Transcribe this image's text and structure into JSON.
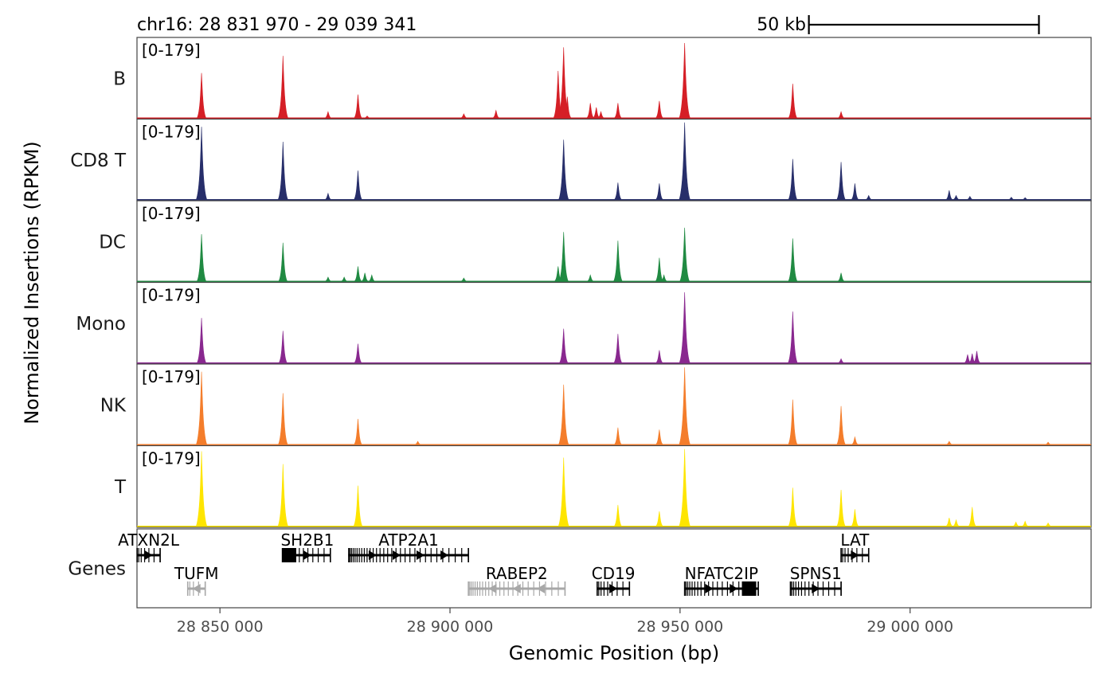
{
  "chart_data": {
    "type": "area",
    "region_label": "chr16: 28 831 970 - 29 039 341",
    "region": {
      "chrom": "chr16",
      "start": 28831970,
      "end": 29039341
    },
    "scale_bar": {
      "label": "50 kb",
      "start": 28978000,
      "end": 29028000
    },
    "ylabel": "Normalized Insertions (RPKM)",
    "xlabel": "Genomic Position (bp)",
    "x_ticks": [
      {
        "value": 28850000,
        "label": "28 850 000"
      },
      {
        "value": 28900000,
        "label": "28 900 000"
      },
      {
        "value": 28950000,
        "label": "28 950 000"
      },
      {
        "value": 29000000,
        "label": "29 000 000"
      }
    ],
    "ylim": [
      0,
      179
    ],
    "range_label": "[0-179]",
    "tracks": [
      {
        "name": "B",
        "color": "#D51F26",
        "peaks": [
          [
            28846000,
            105
          ],
          [
            28863700,
            145
          ],
          [
            28873500,
            15
          ],
          [
            28880000,
            55
          ],
          [
            28882000,
            5
          ],
          [
            28903000,
            10
          ],
          [
            28910000,
            18
          ],
          [
            28923500,
            110
          ],
          [
            28924700,
            165
          ],
          [
            28925500,
            50
          ],
          [
            28930500,
            35
          ],
          [
            28931800,
            25
          ],
          [
            28932800,
            15
          ],
          [
            28936500,
            35
          ],
          [
            28945500,
            40
          ],
          [
            28951000,
            175
          ],
          [
            28974500,
            80
          ],
          [
            28985000,
            15
          ]
        ]
      },
      {
        "name": "CD8 T",
        "color": "#272E6A",
        "peaks": [
          [
            28846000,
            170
          ],
          [
            28863700,
            135
          ],
          [
            28873500,
            15
          ],
          [
            28880000,
            68
          ],
          [
            28924700,
            140
          ],
          [
            28936500,
            40
          ],
          [
            28945500,
            38
          ],
          [
            28951000,
            180
          ],
          [
            28974500,
            95
          ],
          [
            28985000,
            88
          ],
          [
            28988000,
            38
          ],
          [
            28991000,
            10
          ],
          [
            29008500,
            22
          ],
          [
            29010000,
            10
          ],
          [
            29013000,
            8
          ],
          [
            29022000,
            6
          ],
          [
            29025000,
            5
          ]
        ]
      },
      {
        "name": "DC",
        "color": "#208A42",
        "peaks": [
          [
            28846000,
            110
          ],
          [
            28863700,
            90
          ],
          [
            28873500,
            10
          ],
          [
            28877000,
            10
          ],
          [
            28880000,
            35
          ],
          [
            28881500,
            20
          ],
          [
            28883000,
            15
          ],
          [
            28903000,
            8
          ],
          [
            28923500,
            35
          ],
          [
            28924700,
            115
          ],
          [
            28930500,
            15
          ],
          [
            28936500,
            95
          ],
          [
            28945500,
            55
          ],
          [
            28946500,
            15
          ],
          [
            28951000,
            125
          ],
          [
            28974500,
            100
          ],
          [
            28985000,
            20
          ]
        ]
      },
      {
        "name": "Mono",
        "color": "#89288F",
        "peaks": [
          [
            28846000,
            105
          ],
          [
            28863700,
            75
          ],
          [
            28880000,
            45
          ],
          [
            28924700,
            80
          ],
          [
            28936500,
            68
          ],
          [
            28945500,
            30
          ],
          [
            28951000,
            165
          ],
          [
            28974500,
            120
          ],
          [
            28985000,
            10
          ],
          [
            29012500,
            20
          ],
          [
            29013500,
            22
          ],
          [
            29014500,
            28
          ]
        ]
      },
      {
        "name": "NK",
        "color": "#F47D2B",
        "peaks": [
          [
            28846000,
            170
          ],
          [
            28863700,
            120
          ],
          [
            28880000,
            60
          ],
          [
            28893000,
            8
          ],
          [
            28924700,
            140
          ],
          [
            28936500,
            40
          ],
          [
            28945500,
            35
          ],
          [
            28951000,
            180
          ],
          [
            28974500,
            105
          ],
          [
            28985000,
            90
          ],
          [
            28988000,
            18
          ],
          [
            29008500,
            8
          ],
          [
            29030000,
            6
          ]
        ]
      },
      {
        "name": "T",
        "color": "#FEE500",
        "peaks": [
          [
            28846000,
            175
          ],
          [
            28863700,
            145
          ],
          [
            28880000,
            95
          ],
          [
            28924700,
            160
          ],
          [
            28936500,
            50
          ],
          [
            28945500,
            35
          ],
          [
            28951000,
            180
          ],
          [
            28974500,
            90
          ],
          [
            28985000,
            85
          ],
          [
            28988000,
            40
          ],
          [
            29008500,
            20
          ],
          [
            29010000,
            15
          ],
          [
            29013500,
            45
          ],
          [
            29023000,
            10
          ],
          [
            29025000,
            12
          ],
          [
            29030000,
            8
          ]
        ]
      }
    ],
    "genes_label": "Genes",
    "genes": [
      {
        "name": "ATXN2L",
        "start": 28832000,
        "end": 28837000,
        "strand": "+",
        "row": 0,
        "color": "#000000"
      },
      {
        "name": "TUFM",
        "start": 28843000,
        "end": 28846800,
        "strand": "-",
        "row": 1,
        "color": "#A8A8A8"
      },
      {
        "name": "SH2B1",
        "start": 28864000,
        "end": 28874000,
        "strand": "+",
        "row": 0,
        "color": "#000000"
      },
      {
        "name": "ATP2A1",
        "start": 28878000,
        "end": 28904000,
        "strand": "+",
        "row": 0,
        "color": "#000000"
      },
      {
        "name": "RABEP2",
        "start": 28904000,
        "end": 28925000,
        "strand": "-",
        "row": 1,
        "color": "#A8A8A8"
      },
      {
        "name": "CD19",
        "start": 28932000,
        "end": 28939000,
        "strand": "+",
        "row": 1,
        "color": "#000000"
      },
      {
        "name": "NFATC2IP",
        "start": 28951000,
        "end": 28967000,
        "strand": "+",
        "row": 1,
        "color": "#000000"
      },
      {
        "name": "SPNS1",
        "start": 28974000,
        "end": 28985000,
        "strand": "+",
        "row": 1,
        "color": "#000000"
      },
      {
        "name": "LAT",
        "start": 28985000,
        "end": 28991000,
        "strand": "+",
        "row": 0,
        "color": "#000000"
      }
    ]
  }
}
